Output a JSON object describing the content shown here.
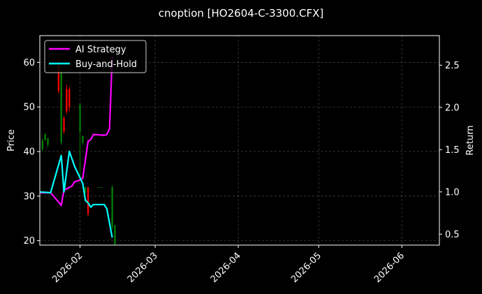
{
  "chart_data": {
    "type": "line",
    "title": "cnoption [HO2604-C-3300.CFX]",
    "ylabel_left": "Price",
    "ylabel_right": "Return",
    "xlim": [
      "2026-01-17",
      "2026-06-15"
    ],
    "ylim_left": [
      19,
      66
    ],
    "ylim_right": [
      0.37,
      2.85
    ],
    "x_ticks": [
      "2026-02",
      "2026-03",
      "2026-04",
      "2026-05",
      "2026-06"
    ],
    "y_ticks_left": [
      "20",
      "30",
      "40",
      "50",
      "60"
    ],
    "y_ticks_right": [
      "0.5",
      "1.0",
      "1.5",
      "2.0",
      "2.5"
    ],
    "grid": true,
    "legend_position": "upper-left",
    "colors": {
      "background": "#000000",
      "up": "#008000",
      "down": "#ff0000",
      "ai_strategy": "#ff00ff",
      "buy_and_hold": "#00ffff",
      "grid": "#555555",
      "axis": "#ffffff"
    },
    "series": [
      {
        "name": "AI Strategy",
        "axis": "right",
        "x": [
          "2026-01-17",
          "2026-01-21",
          "2026-01-24",
          "2026-01-25",
          "2026-01-26",
          "2026-01-29",
          "2026-01-30",
          "2026-02-01",
          "2026-02-02",
          "2026-02-03",
          "2026-02-04",
          "2026-02-05",
          "2026-02-06",
          "2026-02-10",
          "2026-02-11",
          "2026-02-12",
          "2026-02-13"
        ],
        "y": [
          0.99,
          0.99,
          0.88,
          0.84,
          1.02,
          1.07,
          1.12,
          1.14,
          1.16,
          1.38,
          1.6,
          1.62,
          1.68,
          1.67,
          1.68,
          1.75,
          2.6
        ]
      },
      {
        "name": "Buy-and-Hold",
        "axis": "right",
        "x": [
          "2026-01-17",
          "2026-01-21",
          "2026-01-25",
          "2026-01-26",
          "2026-01-28",
          "2026-01-30",
          "2026-02-02",
          "2026-02-03",
          "2026-02-04",
          "2026-02-05",
          "2026-02-06",
          "2026-02-10",
          "2026-02-11",
          "2026-02-12",
          "2026-02-13"
        ],
        "y": [
          1.0,
          0.99,
          1.43,
          1.0,
          1.48,
          1.3,
          1.1,
          0.9,
          0.87,
          0.82,
          0.85,
          0.85,
          0.8,
          0.63,
          0.46
        ]
      }
    ],
    "candles": [
      {
        "x": "2026-01-18",
        "open": 40.5,
        "close": 42.5,
        "high": 43.0,
        "low": 40.0
      },
      {
        "x": "2026-01-19",
        "open": 42.5,
        "close": 44.0,
        "high": 44.0,
        "low": 42.5
      },
      {
        "x": "2026-01-20",
        "open": 41.5,
        "close": 43.0,
        "high": 43.0,
        "low": 41.0
      },
      {
        "x": "2026-01-24",
        "open": 60.0,
        "close": 53.5,
        "high": 61.0,
        "low": 53.0
      },
      {
        "x": "2026-01-25",
        "open": 42.0,
        "close": 58.0,
        "high": 59.0,
        "low": 41.5
      },
      {
        "x": "2026-01-26",
        "open": 47.5,
        "close": 44.5,
        "high": 48.0,
        "low": 44.0
      },
      {
        "x": "2026-01-27",
        "open": 54.0,
        "close": 49.0,
        "high": 55.0,
        "low": 48.5
      },
      {
        "x": "2026-01-28",
        "open": 54.0,
        "close": 50.0,
        "high": 54.5,
        "low": 49.0
      },
      {
        "x": "2026-02-01",
        "open": 44.5,
        "close": 50.5,
        "high": 51.0,
        "low": 34.5
      },
      {
        "x": "2026-02-02",
        "open": 42.0,
        "close": 43.5,
        "high": 43.5,
        "low": 41.5
      },
      {
        "x": "2026-02-03",
        "open": 31.0,
        "close": 32.0,
        "high": 32.0,
        "low": 30.5
      },
      {
        "x": "2026-02-04",
        "open": 32.0,
        "close": 26.0,
        "high": 32.0,
        "low": 25.5
      },
      {
        "x": "2026-02-08",
        "open": 32.0,
        "close": 32.0,
        "high": 32.0,
        "low": 32.0
      },
      {
        "x": "2026-02-09",
        "open": 32.0,
        "close": 32.0,
        "high": 32.0,
        "low": 32.0
      },
      {
        "x": "2026-02-12",
        "open": 30.0,
        "close": 30.0,
        "high": 30.0,
        "low": 30.0
      },
      {
        "x": "2026-02-13",
        "open": 23.0,
        "close": 32.0,
        "high": 32.5,
        "low": 22.5
      },
      {
        "x": "2026-02-14",
        "open": 18.5,
        "close": 23.5,
        "high": 23.5,
        "low": 18.5
      }
    ]
  }
}
